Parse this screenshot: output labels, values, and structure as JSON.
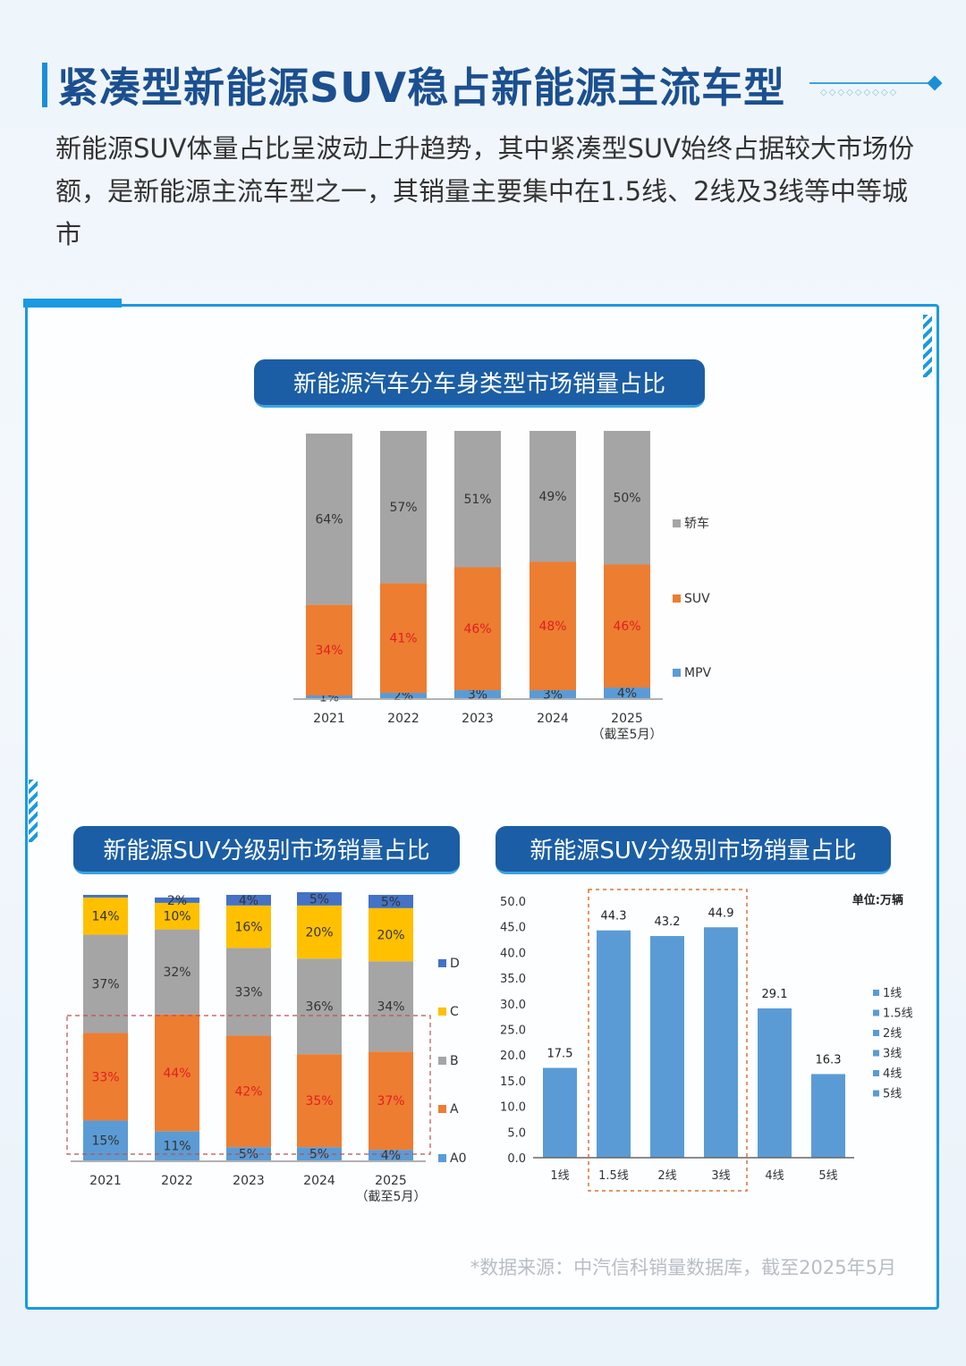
{
  "header": {
    "title": "紧凑型新能源SUV稳占新能源主流车型",
    "deco": "◇◇◇◇◇◇◇◇◇",
    "intro": "新能源SUV体量占比呈波动上升趋势，其中紧凑型SUV始终占据较大市场份额，是新能源主流车型之一，其销量主要集中在1.5线、2线及3线等中等城市"
  },
  "colors": {
    "primary": "#1b5ea5",
    "accent": "#1a9ae0"
  },
  "source": "*数据来源：中汽信科销量数据库，截至2025年5月",
  "chart_data": [
    {
      "type": "bar",
      "stacked": true,
      "title": "新能源汽车分车身类型市场销量占比",
      "categories": [
        "2021",
        "2022",
        "2023",
        "2024",
        "2025"
      ],
      "category_notes": [
        "",
        "",
        "",
        "",
        "（截至5月）"
      ],
      "unit": "%",
      "legend_position": "right",
      "series": [
        {
          "name": "MPV",
          "color": "#5b9bd5",
          "values": [
            1,
            2,
            3,
            3,
            4
          ],
          "labels": [
            "1%",
            "2%",
            "3%",
            "3%",
            "4%"
          ],
          "label_color": "#333"
        },
        {
          "name": "SUV",
          "color": "#ed7d31",
          "values": [
            34,
            41,
            46,
            48,
            46
          ],
          "labels": [
            "34%",
            "41%",
            "46%",
            "48%",
            "46%"
          ],
          "label_color": "#e02020"
        },
        {
          "name": "轿车",
          "color": "#a5a5a5",
          "values": [
            64,
            57,
            51,
            49,
            50
          ],
          "labels": [
            "64%",
            "57%",
            "51%",
            "49%",
            "50%"
          ],
          "label_color": "#333"
        }
      ]
    },
    {
      "type": "bar",
      "stacked": true,
      "title": "新能源SUV分级别市场销量占比",
      "categories": [
        "2021",
        "2022",
        "2023",
        "2024",
        "2025"
      ],
      "category_notes": [
        "",
        "",
        "",
        "",
        "（截至5月）"
      ],
      "unit": "%",
      "legend_position": "right",
      "highlight": [
        "A0",
        "A"
      ],
      "series": [
        {
          "name": "A0",
          "color": "#5b9bd5",
          "values": [
            15,
            11,
            5,
            5,
            4
          ],
          "labels": [
            "15%",
            "11%",
            "5%",
            "5%",
            "4%"
          ],
          "label_color": "#333"
        },
        {
          "name": "A",
          "color": "#ed7d31",
          "values": [
            33,
            44,
            42,
            35,
            37
          ],
          "labels": [
            "33%",
            "44%",
            "42%",
            "35%",
            "37%"
          ],
          "label_color": "#e02020"
        },
        {
          "name": "B",
          "color": "#a5a5a5",
          "values": [
            37,
            32,
            33,
            36,
            34
          ],
          "labels": [
            "37%",
            "32%",
            "33%",
            "36%",
            "34%"
          ],
          "label_color": "#333"
        },
        {
          "name": "C",
          "color": "#ffc000",
          "values": [
            14,
            10,
            16,
            20,
            20
          ],
          "labels": [
            "14%",
            "10%",
            "16%",
            "20%",
            "20%"
          ],
          "label_color": "#333"
        },
        {
          "name": "D",
          "color": "#4472c4",
          "values": [
            1,
            2,
            4,
            5,
            5
          ],
          "labels": [
            "",
            "2%",
            "4%",
            "5%",
            "5%"
          ],
          "label_color": "#333"
        }
      ]
    },
    {
      "type": "bar",
      "title": "新能源SUV分级别市场销量占比",
      "unit_label": "单位:万辆",
      "categories": [
        "1线",
        "1.5线",
        "2线",
        "3线",
        "4线",
        "5线"
      ],
      "values": [
        17.5,
        44.3,
        43.2,
        44.9,
        29.1,
        16.3
      ],
      "value_labels": [
        "17.5",
        "44.3",
        "43.2",
        "44.9",
        "29.1",
        "16.3"
      ],
      "color": "#5b9bd5",
      "ylim": [
        0,
        50
      ],
      "yticks": [
        "0.0",
        "5.0",
        "10.0",
        "15.0",
        "20.0",
        "25.0",
        "30.0",
        "35.0",
        "40.0",
        "45.0",
        "50.0"
      ],
      "legend": [
        "1线",
        "1.5线",
        "2线",
        "3线",
        "4线",
        "5线"
      ],
      "legend_position": "right",
      "highlight": [
        "1.5线",
        "2线",
        "3线"
      ]
    }
  ]
}
